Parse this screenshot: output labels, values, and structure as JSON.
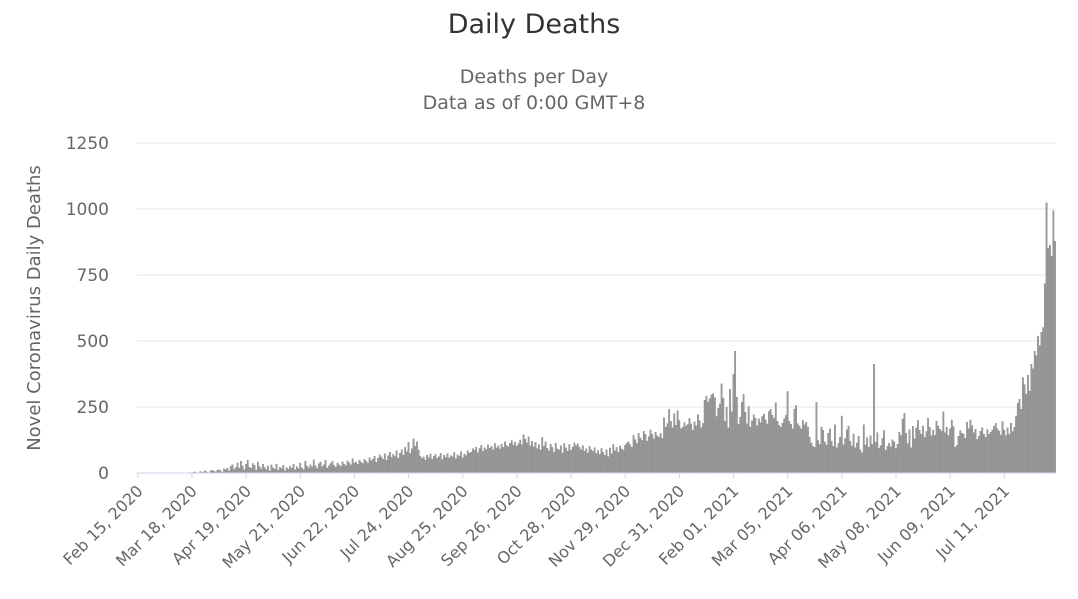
{
  "chart_data": {
    "type": "bar",
    "title": "Daily Deaths",
    "subtitle_lines": [
      "Deaths per Day",
      "Data as of 0:00 GMT+8"
    ],
    "ylabel": "Novel Coronavirus Daily Deaths",
    "xlabel": "",
    "ylim": [
      0,
      1250
    ],
    "yticks": [
      0,
      250,
      500,
      750,
      1000,
      1250
    ],
    "x_start": "2020-02-15",
    "x_end": "2021-07-17",
    "xtick_labels": [
      "Feb 15, 2020",
      "Mar 18, 2020",
      "Apr 19, 2020",
      "May 21, 2020",
      "Jun 22, 2020",
      "Jul 24, 2020",
      "Aug 25, 2020",
      "Sep 26, 2020",
      "Oct 28, 2020",
      "Nov 29, 2020",
      "Dec 31, 2020",
      "Feb 01, 2021",
      "Mar 05, 2021",
      "Apr 06, 2021",
      "May 08, 2021",
      "Jun 09, 2021",
      "Jul 11, 2021"
    ],
    "grid": true,
    "legend": "none",
    "colors": {
      "bar": "#9b9b9b",
      "grid": "#e6e6e6"
    },
    "series_monthly": [
      {
        "month": "Feb 2020",
        "values": [
          0,
          0,
          0,
          0,
          0,
          0,
          0,
          0,
          0,
          0,
          0,
          0,
          0,
          0,
          0
        ]
      },
      {
        "month": "Mar 2020",
        "values": [
          0,
          0,
          0,
          0,
          0,
          0,
          0,
          0,
          0,
          0,
          0,
          0,
          0,
          0,
          0,
          0,
          2,
          1,
          3,
          4,
          1,
          0,
          6,
          2,
          5,
          9,
          3,
          1,
          8,
          11,
          7
        ]
      },
      {
        "month": "Apr 2020",
        "values": [
          4,
          10,
          12,
          9,
          3,
          16,
          13,
          18,
          8,
          25,
          31,
          14,
          21,
          38,
          19,
          45,
          27,
          12,
          33,
          49,
          22,
          18,
          36,
          29,
          11,
          42,
          25,
          16,
          33,
          21
        ]
      },
      {
        "month": "May 2020",
        "values": [
          13,
          27,
          8,
          31,
          19,
          15,
          34,
          11,
          22,
          17,
          29,
          9,
          21,
          14,
          26,
          18,
          33,
          12,
          24,
          16,
          38,
          20,
          13,
          45,
          27,
          19,
          31,
          23,
          50,
          28,
          17
        ]
      },
      {
        "month": "Jun 2020",
        "values": [
          35,
          42,
          24,
          31,
          48,
          19,
          27,
          36,
          45,
          29,
          22,
          38,
          31,
          26,
          43,
          34,
          28,
          46,
          39,
          31,
          54,
          37,
          42,
          33,
          49,
          41,
          36,
          52,
          45,
          38
        ]
      },
      {
        "month": "Jul 2020",
        "values": [
          58,
          47,
          53,
          64,
          41,
          56,
          69,
          61,
          52,
          73,
          48,
          66,
          79,
          59,
          71,
          63,
          84,
          56,
          75,
          88,
          68,
          97,
          81,
          116,
          74,
          92,
          130,
          101,
          118,
          87,
          63
        ]
      },
      {
        "month": "Aug 2020",
        "values": [
          55,
          61,
          49,
          67,
          58,
          72,
          53,
          64,
          70,
          56,
          62,
          75,
          51,
          68,
          59,
          73,
          57,
          66,
          61,
          78,
          54,
          69,
          64,
          81,
          58,
          72,
          66,
          84,
          75,
          79,
          92
        ]
      },
      {
        "month": "Sep 2020",
        "values": [
          86,
          98,
          77,
          93,
          105,
          82,
          96,
          89,
          107,
          94,
          101,
          88,
          112,
          95,
          103,
          91,
          109,
          97,
          118,
          104,
          99,
          113,
          123,
          106,
          117,
          102,
          111,
          125,
          108,
          145
        ]
      },
      {
        "month": "Oct 2020",
        "values": [
          128,
          114,
          137,
          103,
          121,
          99,
          116,
          92,
          108,
          87,
          135,
          101,
          118,
          94,
          84,
          109,
          97,
          79,
          113,
          91,
          88,
          104,
          76,
          112,
          95,
          83,
          108,
          86,
          98,
          114,
          103
        ]
      },
      {
        "month": "Nov 2020",
        "values": [
          111,
          97,
          88,
          104,
          83,
          92,
          76,
          101,
          89,
          82,
          96,
          74,
          85,
          71,
          93,
          79,
          67,
          88,
          62,
          95,
          73,
          108,
          84,
          97,
          79,
          102,
          91,
          86,
          106,
          113
        ]
      },
      {
        "month": "Dec 2020",
        "values": [
          118,
          107,
          97,
          143,
          126,
          112,
          151,
          133,
          124,
          158,
          146,
          121,
          138,
          163,
          147,
          129,
          155,
          141,
          136,
          150,
          131,
          209,
          174,
          187,
          241,
          196,
          172,
          225,
          181,
          236,
          199
        ]
      },
      {
        "month": "Jan 2021",
        "values": [
          168,
          173,
          191,
          178,
          184,
          207,
          186,
          162,
          194,
          179,
          221,
          198,
          172,
          188,
          276,
          291,
          269,
          282,
          296,
          301,
          286,
          214,
          245,
          262,
          338,
          283,
          196,
          249,
          171,
          317,
          232
        ]
      },
      {
        "month": "Feb 2021",
        "values": [
          374,
          461,
          287,
          184,
          212,
          268,
          298,
          231,
          186,
          252,
          174,
          198,
          221,
          208,
          179,
          205,
          191,
          214,
          223,
          201,
          186,
          233,
          242,
          219,
          208,
          267,
          196,
          181
        ]
      },
      {
        "month": "Mar 2021",
        "values": [
          173,
          189,
          206,
          218,
          309,
          196,
          185,
          168,
          242,
          256,
          187,
          178,
          167,
          199,
          183,
          192,
          174,
          136,
          114,
          101,
          97,
          268,
          123,
          108,
          174,
          162,
          118,
          106,
          151,
          167,
          121
        ]
      },
      {
        "month": "Apr 2021",
        "values": [
          101,
          183,
          96,
          112,
          136,
          216,
          107,
          131,
          164,
          178,
          121,
          102,
          148,
          96,
          114,
          139,
          88,
          77,
          183,
          106,
          134,
          97,
          141,
          108,
          412,
          117,
          153,
          93,
          104,
          132
        ]
      },
      {
        "month": "May 2021",
        "values": [
          161,
          86,
          101,
          113,
          99,
          126,
          118,
          93,
          109,
          154,
          142,
          205,
          226,
          151,
          112,
          164,
          96,
          177,
          129,
          171,
          199,
          162,
          147,
          178,
          135,
          157,
          208,
          173,
          141,
          163,
          143
        ]
      },
      {
        "month": "Jun 2021",
        "values": [
          196,
          178,
          166,
          159,
          232,
          153,
          173,
          142,
          168,
          201,
          176,
          98,
          104,
          139,
          161,
          151,
          147,
          132,
          192,
          168,
          201,
          179,
          153,
          166,
          127,
          139,
          158,
          172,
          147,
          135
        ]
      },
      {
        "month": "Jul 2021",
        "values": [
          165,
          147,
          154,
          163,
          177,
          188,
          168,
          159,
          144,
          195,
          163,
          142,
          171,
          146,
          189,
          157,
          173
        ]
      }
    ],
    "series_peak_tail": [
      216,
      264,
      279,
      241,
      362,
      335,
      298,
      371,
      310,
      412,
      395,
      461,
      445,
      519,
      482,
      533,
      551,
      717,
      1024,
      851,
      863,
      822,
      994,
      878
    ]
  }
}
